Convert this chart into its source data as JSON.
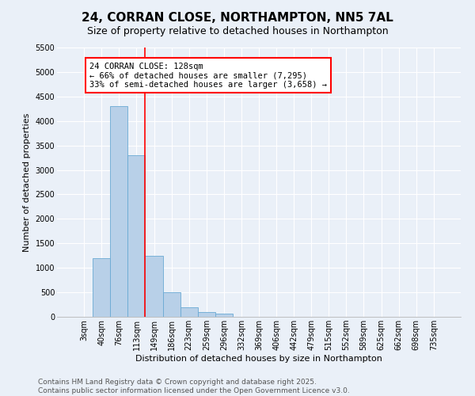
{
  "title": "24, CORRAN CLOSE, NORTHAMPTON, NN5 7AL",
  "subtitle": "Size of property relative to detached houses in Northampton",
  "xlabel": "Distribution of detached houses by size in Northampton",
  "ylabel": "Number of detached properties",
  "categories": [
    "3sqm",
    "40sqm",
    "76sqm",
    "113sqm",
    "149sqm",
    "186sqm",
    "223sqm",
    "259sqm",
    "296sqm",
    "332sqm",
    "369sqm",
    "406sqm",
    "442sqm",
    "479sqm",
    "515sqm",
    "552sqm",
    "589sqm",
    "625sqm",
    "662sqm",
    "698sqm",
    "735sqm"
  ],
  "values": [
    0,
    1200,
    4300,
    3300,
    1250,
    500,
    200,
    100,
    60,
    0,
    0,
    0,
    0,
    0,
    0,
    0,
    0,
    0,
    0,
    0,
    0
  ],
  "bar_color": "#b8d0e8",
  "bar_edge_color": "#6aaad4",
  "vline_x_index": 3.5,
  "vline_color": "red",
  "annotation_text": "24 CORRAN CLOSE: 128sqm\n← 66% of detached houses are smaller (7,295)\n33% of semi-detached houses are larger (3,658) →",
  "annotation_box_color": "white",
  "annotation_box_edge_color": "red",
  "ylim": [
    0,
    5500
  ],
  "yticks": [
    0,
    500,
    1000,
    1500,
    2000,
    2500,
    3000,
    3500,
    4000,
    4500,
    5000,
    5500
  ],
  "footer_line1": "Contains HM Land Registry data © Crown copyright and database right 2025.",
  "footer_line2": "Contains public sector information licensed under the Open Government Licence v3.0.",
  "bg_color": "#eaf0f8",
  "title_fontsize": 11,
  "subtitle_fontsize": 9,
  "axis_label_fontsize": 8,
  "tick_fontsize": 7,
  "annotation_fontsize": 7.5,
  "footer_fontsize": 6.5
}
